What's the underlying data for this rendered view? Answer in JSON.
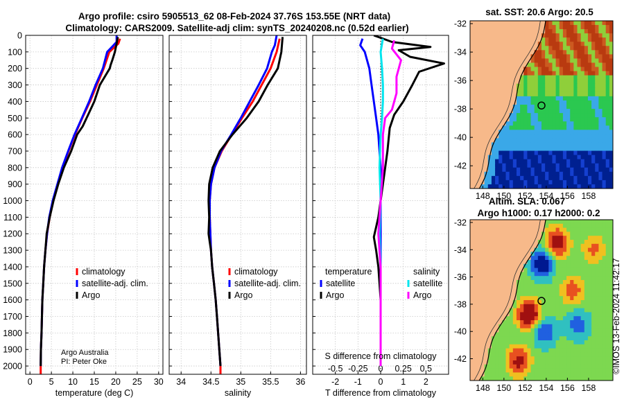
{
  "header": {
    "title_line1": "Argo profile: csiro 5905513_62 08-Feb-2024 37.76S 153.55E (NRT data)",
    "title_line2": "Climatology: CARS2009. Satellite-adj clim: synTS_20240208.nc (0.52d earlier)"
  },
  "credit": {
    "line1": "Argo Australia",
    "line2": "PI: Peter Oke"
  },
  "watermark": "©IMOS 13-Feb-2024 11:42:17",
  "colors": {
    "climatology": "#ff0000",
    "satellite": "#0000ff",
    "argo": "#000000",
    "salinity_argo": "#ff00ff",
    "salinity_sat": "#00e5ee",
    "land": "#f7b98a"
  },
  "chart_data": [
    {
      "type": "line",
      "id": "temperature",
      "xlabel": "temperature (deg C)",
      "xlim": [
        -1,
        31
      ],
      "xticks": [
        0,
        5,
        10,
        15,
        20,
        25,
        30
      ],
      "ylabel": "depth",
      "ylim": [
        2050,
        0
      ],
      "yticks": [
        0,
        100,
        200,
        300,
        400,
        500,
        600,
        700,
        800,
        900,
        1000,
        1100,
        1200,
        1300,
        1400,
        1500,
        1600,
        1700,
        1800,
        1900,
        2000
      ],
      "legend": [
        "climatology",
        "satellite-adj. clim.",
        "Argo"
      ],
      "series": [
        {
          "name": "climatology",
          "color": "#ff0000",
          "points": [
            [
              21.0,
              20
            ],
            [
              20.6,
              50
            ],
            [
              18.5,
              100
            ],
            [
              17.2,
              200
            ],
            [
              15.6,
              300
            ],
            [
              14.0,
              400
            ],
            [
              12.2,
              500
            ],
            [
              10.5,
              600
            ],
            [
              9.0,
              700
            ],
            [
              7.6,
              800
            ],
            [
              6.5,
              900
            ],
            [
              5.4,
              1000
            ],
            [
              4.6,
              1100
            ],
            [
              4.0,
              1200
            ],
            [
              3.6,
              1300
            ],
            [
              3.3,
              1400
            ],
            [
              3.1,
              1500
            ],
            [
              2.9,
              1600
            ],
            [
              2.8,
              1700
            ],
            [
              2.7,
              1800
            ],
            [
              2.55,
              1900
            ],
            [
              2.5,
              2000
            ],
            [
              2.5,
              2050
            ]
          ]
        },
        {
          "name": "satellite-adj. clim.",
          "color": "#0000ff",
          "points": [
            [
              20.2,
              0
            ],
            [
              20.2,
              40
            ],
            [
              19.5,
              60
            ],
            [
              18.0,
              100
            ],
            [
              17.0,
              200
            ],
            [
              15.3,
              300
            ],
            [
              13.8,
              400
            ],
            [
              12.1,
              500
            ],
            [
              10.4,
              600
            ],
            [
              8.9,
              700
            ],
            [
              7.5,
              800
            ],
            [
              6.4,
              900
            ],
            [
              5.3,
              1000
            ],
            [
              4.5,
              1100
            ],
            [
              4.0,
              1200
            ],
            [
              3.6,
              1300
            ],
            [
              3.3,
              1400
            ],
            [
              3.1,
              1500
            ],
            [
              2.9,
              1600
            ],
            [
              2.8,
              1700
            ],
            [
              2.7,
              1800
            ],
            [
              2.55,
              1900
            ],
            [
              2.5,
              2000
            ]
          ]
        },
        {
          "name": "Argo",
          "color": "#000000",
          "points": [
            [
              20.5,
              10
            ],
            [
              20.2,
              50
            ],
            [
              19.8,
              100
            ],
            [
              19.2,
              150
            ],
            [
              18.8,
              180
            ],
            [
              18.6,
              200
            ],
            [
              16.3,
              300
            ],
            [
              15.0,
              400
            ],
            [
              13.2,
              500
            ],
            [
              12.3,
              550
            ],
            [
              11.0,
              600
            ],
            [
              9.6,
              700
            ],
            [
              7.9,
              800
            ],
            [
              6.6,
              900
            ],
            [
              5.5,
              1000
            ],
            [
              4.6,
              1100
            ],
            [
              3.9,
              1200
            ],
            [
              3.6,
              1300
            ],
            [
              3.3,
              1400
            ],
            [
              3.1,
              1500
            ],
            [
              2.9,
              1600
            ],
            [
              2.8,
              1700
            ],
            [
              2.7,
              1800
            ],
            [
              2.55,
              1900
            ],
            [
              2.5,
              2000
            ]
          ]
        }
      ]
    },
    {
      "type": "line",
      "id": "salinity",
      "xlabel": "salinity",
      "xlim": [
        33.8,
        36.1
      ],
      "xticks": [
        34,
        34.5,
        35,
        35.5,
        36
      ],
      "ylim": [
        2050,
        0
      ],
      "legend": [
        "climatology",
        "satellite-adj. clim.",
        "Argo"
      ],
      "series": [
        {
          "name": "climatology",
          "color": "#ff0000",
          "points": [
            [
              35.65,
              20
            ],
            [
              35.6,
              100
            ],
            [
              35.5,
              200
            ],
            [
              35.35,
              300
            ],
            [
              35.2,
              400
            ],
            [
              35.02,
              500
            ],
            [
              34.85,
              600
            ],
            [
              34.68,
              700
            ],
            [
              34.56,
              800
            ],
            [
              34.5,
              900
            ],
            [
              34.48,
              1000
            ],
            [
              34.48,
              1100
            ],
            [
              34.49,
              1200
            ],
            [
              34.5,
              1300
            ],
            [
              34.52,
              1400
            ],
            [
              34.55,
              1500
            ],
            [
              34.58,
              1600
            ],
            [
              34.6,
              1700
            ],
            [
              34.62,
              1800
            ],
            [
              34.64,
              1900
            ],
            [
              34.66,
              2000
            ],
            [
              34.66,
              2050
            ]
          ]
        },
        {
          "name": "satellite-adj. clim.",
          "color": "#0000ff",
          "points": [
            [
              35.6,
              0
            ],
            [
              35.57,
              60
            ],
            [
              35.52,
              100
            ],
            [
              35.44,
              200
            ],
            [
              35.3,
              300
            ],
            [
              35.15,
              400
            ],
            [
              35.0,
              500
            ],
            [
              34.84,
              600
            ],
            [
              34.67,
              700
            ],
            [
              34.56,
              800
            ],
            [
              34.5,
              900
            ],
            [
              34.48,
              1000
            ],
            [
              34.48,
              1100
            ],
            [
              34.49,
              1200
            ],
            [
              34.5,
              1300
            ],
            [
              34.52,
              1400
            ],
            [
              34.55,
              1500
            ],
            [
              34.58,
              1600
            ],
            [
              34.6,
              1700
            ],
            [
              34.62,
              1800
            ],
            [
              34.64,
              1900
            ],
            [
              34.66,
              2000
            ]
          ]
        },
        {
          "name": "Argo",
          "color": "#000000",
          "points": [
            [
              35.7,
              10
            ],
            [
              35.68,
              100
            ],
            [
              35.62,
              200
            ],
            [
              35.45,
              300
            ],
            [
              35.3,
              400
            ],
            [
              35.1,
              500
            ],
            [
              34.86,
              600
            ],
            [
              34.65,
              700
            ],
            [
              34.53,
              800
            ],
            [
              34.47,
              900
            ],
            [
              34.46,
              1000
            ],
            [
              34.47,
              1100
            ],
            [
              34.46,
              1200
            ],
            [
              34.48,
              1250
            ],
            [
              34.5,
              1300
            ],
            [
              34.52,
              1400
            ],
            [
              34.55,
              1500
            ],
            [
              34.58,
              1600
            ],
            [
              34.6,
              1700
            ],
            [
              34.62,
              1800
            ],
            [
              34.64,
              1900
            ],
            [
              34.66,
              2000
            ]
          ]
        }
      ]
    },
    {
      "type": "line",
      "id": "difference",
      "xlabel": "T difference from climatology",
      "xlabel_top": "S difference from climatology",
      "xlim": [
        -3,
        3
      ],
      "xticks": [
        -2,
        -1,
        0,
        1,
        2
      ],
      "xticks_top_labels": [
        "-0.5",
        "-0.25",
        "0",
        "0.25",
        "0.5"
      ],
      "ylim": [
        2050,
        0
      ],
      "legend_temperature_title": "temperature",
      "legend_salinity_title": "salinity",
      "legend_temperature": [
        "satellite",
        "Argo"
      ],
      "legend_salinity": [
        "satellite",
        "Argo"
      ],
      "series": [
        {
          "name": "T Argo",
          "color": "#000000",
          "points": [
            [
              -0.3,
              0
            ],
            [
              0.5,
              40
            ],
            [
              2.2,
              70
            ],
            [
              0.8,
              90
            ],
            [
              1.3,
              130
            ],
            [
              2.8,
              170
            ],
            [
              1.7,
              220
            ],
            [
              1.4,
              300
            ],
            [
              1.0,
              400
            ],
            [
              0.6,
              480
            ],
            [
              0.4,
              560
            ],
            [
              0.3,
              700
            ],
            [
              0.1,
              900
            ],
            [
              -0.1,
              1100
            ],
            [
              -0.3,
              1220
            ],
            [
              -0.2,
              1300
            ],
            [
              -0.1,
              1400
            ],
            [
              0.0,
              1600
            ],
            [
              0.0,
              2000
            ]
          ]
        },
        {
          "name": "T satellite",
          "color": "#0000ff",
          "points": [
            [
              -0.8,
              20
            ],
            [
              -0.9,
              60
            ],
            [
              -0.7,
              100
            ],
            [
              -0.5,
              200
            ],
            [
              -0.4,
              300
            ],
            [
              -0.3,
              400
            ],
            [
              -0.2,
              500
            ],
            [
              -0.1,
              600
            ],
            [
              0.0,
              800
            ],
            [
              0.0,
              2000
            ]
          ]
        },
        {
          "name": "S satellite",
          "color": "#00e5ee",
          "points": [
            [
              0.1,
              20
            ],
            [
              0.0,
              100
            ],
            [
              0.06,
              200
            ],
            [
              0.1,
              300
            ],
            [
              0.1,
              400
            ],
            [
              0.06,
              500
            ],
            [
              0.0,
              600
            ],
            [
              -0.05,
              800
            ],
            [
              0.0,
              1000
            ],
            [
              -0.05,
              1200
            ],
            [
              0.0,
              1400
            ],
            [
              0.0,
              2000
            ]
          ]
        },
        {
          "name": "S Argo",
          "color": "#ff00ff",
          "points": [
            [
              0.6,
              30
            ],
            [
              0.5,
              80
            ],
            [
              0.9,
              150
            ],
            [
              0.7,
              250
            ],
            [
              0.7,
              350
            ],
            [
              0.5,
              450
            ],
            [
              0.2,
              500
            ],
            [
              0.1,
              600
            ],
            [
              0.1,
              800
            ],
            [
              0.0,
              1000
            ],
            [
              -0.1,
              1200
            ],
            [
              0.0,
              1400
            ],
            [
              0.0,
              2000
            ]
          ]
        }
      ]
    },
    {
      "type": "heatmap",
      "id": "sst_map",
      "title": "sat. SST: 20.6 Argo: 20.5",
      "xticks": [
        148,
        150,
        152,
        154,
        156,
        158
      ],
      "yticks": [
        -32,
        -34,
        -36,
        -38,
        -40,
        -42
      ],
      "xlim": [
        146.8,
        160.3
      ],
      "ylim": [
        -43.6,
        -31.8
      ],
      "argo_position": [
        153.55,
        -37.76
      ]
    },
    {
      "type": "heatmap",
      "id": "sla_map",
      "title_line1": "Altim. SLA: 0.067",
      "title_line2": "Argo h1000: 0.17 h2000: 0.2",
      "xticks": [
        148,
        150,
        152,
        154,
        156,
        158
      ],
      "yticks": [
        -32,
        -34,
        -36,
        -38,
        -40,
        -42
      ],
      "xlim": [
        146.8,
        160.3
      ],
      "ylim": [
        -43.6,
        -31.8
      ],
      "argo_position": [
        153.55,
        -37.76
      ]
    }
  ]
}
